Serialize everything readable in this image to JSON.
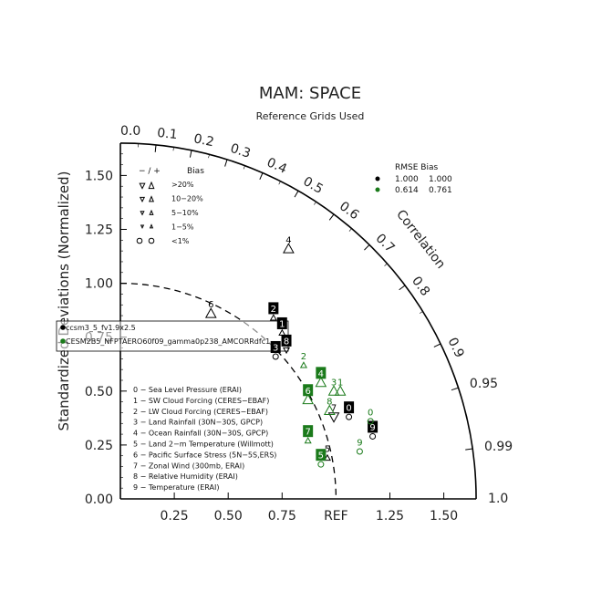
{
  "chart_data": {
    "type": "scatter",
    "title": "MAM: SPACE",
    "subtitle": "Reference Grids Used",
    "ylabel": "Standardized Deviations (Normalized)",
    "corr_label": "Correlation",
    "ref_label": "REF",
    "radial_ticks": [
      "0.25",
      "0.50",
      "0.75",
      "1.25",
      "1.50"
    ],
    "y_ticks": [
      "0.00",
      "0.25",
      "0.50",
      "0.75",
      "1.00",
      "1.25",
      "1.50"
    ],
    "corr_ticks": [
      "0.0",
      "0.1",
      "0.2",
      "0.3",
      "0.4",
      "0.5",
      "0.6",
      "0.7",
      "0.8",
      "0.9",
      "0.95",
      "0.99",
      "1.0"
    ],
    "std_max": 1.65,
    "bias_legend": {
      "header_sign": "− / +",
      "header_bias": "Bias",
      "rows": [
        ">20%",
        "10−20%",
        "5−10%",
        "1−5%",
        "<1%"
      ]
    },
    "rmse_legend": {
      "header": "RMSE Bias",
      "rows": [
        {
          "color": "#000000",
          "rmse": "1.000",
          "bias": "1.000"
        },
        {
          "color": "#1a7a1a",
          "rmse": "0.614",
          "bias": "0.761"
        }
      ]
    },
    "variables": [
      "0 − Sea Level Pressure (ERAI)",
      "1 − SW Cloud Forcing (CERES−EBAF)",
      "2 − LW Cloud Forcing (CERES−EBAF)",
      "3 − Land Rainfall (30N−30S, GPCP)",
      "4 − Ocean Rainfall (30N−30S, GPCP)",
      "5 − Land 2−m Temperature (Willmott)",
      "6 − Pacific Surface Stress (5N−5S,ERS)",
      "7 − Zonal Wind (300mb, ERAI)",
      "8 − Relative Humidity (ERAI)",
      "9 − Temperature (ERAI)"
    ],
    "cases": [
      "ccsm3_5_fv1.9x2.5",
      "CESM2B5_NFPTAERO60f09_gamma0p238_AMCORRdfc1"
    ],
    "series": [
      {
        "name": "ccsm3_5_fv1.9x2.5",
        "color": "#000000",
        "points": [
          {
            "label": "0",
            "x": 1.06,
            "y": 0.38,
            "boxed": true,
            "marker": "circle-open"
          },
          {
            "label": "1",
            "x": 0.75,
            "y": 0.77,
            "boxed": true,
            "marker": "tri-up-small"
          },
          {
            "label": "2",
            "x": 0.71,
            "y": 0.84,
            "boxed": true,
            "marker": "tri-up-small"
          },
          {
            "label": "3",
            "x": 0.72,
            "y": 0.66,
            "boxed": true,
            "marker": "circle-open"
          },
          {
            "label": "4",
            "x": 0.78,
            "y": 1.16,
            "boxed": false,
            "marker": "tri-up"
          },
          {
            "label": "5",
            "x": 0.96,
            "y": 0.19,
            "boxed": false,
            "marker": "tri-up-small"
          },
          {
            "label": "6",
            "x": 0.42,
            "y": 0.86,
            "boxed": false,
            "marker": "tri-up"
          },
          {
            "label": "7",
            "x": 0.99,
            "y": 0.38,
            "boxed": false,
            "marker": "tri-down"
          },
          {
            "label": "8",
            "x": 0.77,
            "y": 0.69,
            "boxed": true,
            "marker": "tri-down-small"
          },
          {
            "label": "9",
            "x": 1.17,
            "y": 0.29,
            "boxed": true,
            "marker": "circle-open"
          }
        ]
      },
      {
        "name": "CESM2B5_NFPTAERO60f09_gamma0p238_AMCORRdfc1",
        "color": "#1a7a1a",
        "points": [
          {
            "label": "0",
            "x": 1.16,
            "y": 0.36,
            "boxed": false,
            "marker": "circle-open"
          },
          {
            "label": "1",
            "x": 1.02,
            "y": 0.5,
            "boxed": false,
            "marker": "tri-up"
          },
          {
            "label": "2",
            "x": 0.85,
            "y": 0.62,
            "boxed": false,
            "marker": "tri-up-small"
          },
          {
            "label": "3",
            "x": 0.99,
            "y": 0.5,
            "boxed": false,
            "marker": "tri-up"
          },
          {
            "label": "4",
            "x": 0.93,
            "y": 0.54,
            "boxed": true,
            "marker": "tri-up"
          },
          {
            "label": "5",
            "x": 0.93,
            "y": 0.16,
            "boxed": true,
            "marker": "circle-open"
          },
          {
            "label": "6",
            "x": 0.87,
            "y": 0.46,
            "boxed": true,
            "marker": "tri-up"
          },
          {
            "label": "7",
            "x": 0.87,
            "y": 0.27,
            "boxed": true,
            "marker": "tri-up-small"
          },
          {
            "label": "8",
            "x": 0.97,
            "y": 0.41,
            "boxed": false,
            "marker": "tri-up"
          },
          {
            "label": "9",
            "x": 1.11,
            "y": 0.22,
            "boxed": false,
            "marker": "circle-open"
          }
        ]
      }
    ]
  }
}
